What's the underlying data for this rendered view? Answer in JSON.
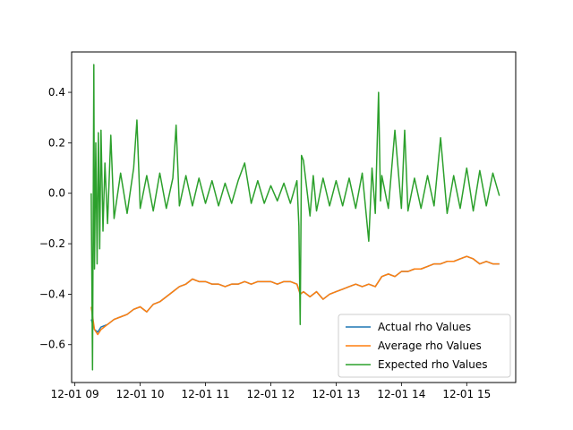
{
  "chart_data": {
    "type": "line",
    "title": "",
    "xlabel": "",
    "ylabel": "",
    "x_axis": {
      "unit": "hour",
      "ticks": [
        {
          "value": 9,
          "label": "12-01 09"
        },
        {
          "value": 10,
          "label": "12-01 10"
        },
        {
          "value": 11,
          "label": "12-01 11"
        },
        {
          "value": 12,
          "label": "12-01 12"
        },
        {
          "value": 13,
          "label": "12-01 13"
        },
        {
          "value": 14,
          "label": "12-01 14"
        },
        {
          "value": 15,
          "label": "12-01 15"
        }
      ]
    },
    "xlim": [
      8.95,
      15.75
    ],
    "ylim": [
      -0.75,
      0.56
    ],
    "y_ticks": [
      {
        "value": -0.6,
        "label": "−0.6"
      },
      {
        "value": -0.4,
        "label": "−0.4"
      },
      {
        "value": -0.2,
        "label": "−0.2"
      },
      {
        "value": 0.0,
        "label": "0.0"
      },
      {
        "value": 0.2,
        "label": "0.2"
      },
      {
        "value": 0.4,
        "label": "0.4"
      }
    ],
    "legend_position": "lower-right",
    "grid": false,
    "series": [
      {
        "name": "Actual rho Values",
        "color": "#1f77b4",
        "x": [
          9.25,
          9.3,
          9.35,
          9.4,
          9.5,
          9.6,
          9.7,
          9.8,
          9.9,
          10.0,
          10.1,
          10.2,
          10.3,
          10.4,
          10.5,
          10.6,
          10.7,
          10.8,
          10.9,
          11.0,
          11.1,
          11.2,
          11.3,
          11.4,
          11.5,
          11.6,
          11.7,
          11.8,
          11.9,
          12.0,
          12.1,
          12.2,
          12.3,
          12.4,
          12.45,
          12.5,
          12.6,
          12.7,
          12.8,
          12.9,
          13.0,
          13.1,
          13.2,
          13.3,
          13.4,
          13.5,
          13.6,
          13.7,
          13.8,
          13.9,
          14.0,
          14.1,
          14.2,
          14.3,
          14.4,
          14.5,
          14.6,
          14.7,
          14.8,
          14.9,
          15.0,
          15.1,
          15.2,
          15.3,
          15.4,
          15.5
        ],
        "y": [
          -0.5,
          -0.54,
          -0.55,
          -0.53,
          -0.52,
          -0.5,
          -0.49,
          -0.48,
          -0.46,
          -0.45,
          -0.47,
          -0.44,
          -0.43,
          -0.41,
          -0.39,
          -0.37,
          -0.36,
          -0.34,
          -0.35,
          -0.35,
          -0.36,
          -0.36,
          -0.37,
          -0.36,
          -0.36,
          -0.35,
          -0.36,
          -0.35,
          -0.35,
          -0.35,
          -0.36,
          -0.35,
          -0.35,
          -0.36,
          -0.4,
          -0.39,
          -0.41,
          -0.39,
          -0.42,
          -0.4,
          -0.39,
          -0.38,
          -0.37,
          -0.36,
          -0.37,
          -0.36,
          -0.37,
          -0.33,
          -0.32,
          -0.33,
          -0.31,
          -0.31,
          -0.3,
          -0.3,
          -0.29,
          -0.28,
          -0.28,
          -0.27,
          -0.27,
          -0.26,
          -0.25,
          -0.26,
          -0.28,
          -0.27,
          -0.28,
          -0.28
        ]
      },
      {
        "name": "Average rho Values",
        "color": "#ff7f0e",
        "x": [
          9.25,
          9.3,
          9.35,
          9.4,
          9.5,
          9.6,
          9.7,
          9.8,
          9.9,
          10.0,
          10.1,
          10.2,
          10.3,
          10.4,
          10.5,
          10.6,
          10.7,
          10.8,
          10.9,
          11.0,
          11.1,
          11.2,
          11.3,
          11.4,
          11.5,
          11.6,
          11.7,
          11.8,
          11.9,
          12.0,
          12.1,
          12.2,
          12.3,
          12.4,
          12.45,
          12.5,
          12.6,
          12.7,
          12.8,
          12.9,
          13.0,
          13.1,
          13.2,
          13.3,
          13.4,
          13.5,
          13.6,
          13.7,
          13.8,
          13.9,
          14.0,
          14.1,
          14.2,
          14.3,
          14.4,
          14.5,
          14.6,
          14.7,
          14.8,
          14.9,
          15.0,
          15.1,
          15.2,
          15.3,
          15.4,
          15.5
        ],
        "y": [
          -0.45,
          -0.54,
          -0.56,
          -0.54,
          -0.52,
          -0.5,
          -0.49,
          -0.48,
          -0.46,
          -0.45,
          -0.47,
          -0.44,
          -0.43,
          -0.41,
          -0.39,
          -0.37,
          -0.36,
          -0.34,
          -0.35,
          -0.35,
          -0.36,
          -0.36,
          -0.37,
          -0.36,
          -0.36,
          -0.35,
          -0.36,
          -0.35,
          -0.35,
          -0.35,
          -0.36,
          -0.35,
          -0.35,
          -0.36,
          -0.4,
          -0.39,
          -0.41,
          -0.39,
          -0.42,
          -0.4,
          -0.39,
          -0.38,
          -0.37,
          -0.36,
          -0.37,
          -0.36,
          -0.37,
          -0.33,
          -0.32,
          -0.33,
          -0.31,
          -0.31,
          -0.3,
          -0.3,
          -0.29,
          -0.28,
          -0.28,
          -0.27,
          -0.27,
          -0.26,
          -0.25,
          -0.26,
          -0.28,
          -0.27,
          -0.28,
          -0.28
        ]
      },
      {
        "name": "Expected rho Values",
        "color": "#2ca02c",
        "x": [
          9.25,
          9.27,
          9.29,
          9.3,
          9.32,
          9.34,
          9.36,
          9.38,
          9.4,
          9.43,
          9.46,
          9.5,
          9.55,
          9.6,
          9.7,
          9.8,
          9.9,
          9.95,
          10.0,
          10.1,
          10.2,
          10.3,
          10.4,
          10.5,
          10.55,
          10.6,
          10.7,
          10.8,
          10.9,
          11.0,
          11.1,
          11.2,
          11.3,
          11.4,
          11.5,
          11.6,
          11.7,
          11.8,
          11.9,
          12.0,
          12.1,
          12.2,
          12.3,
          12.4,
          12.43,
          12.45,
          12.47,
          12.5,
          12.6,
          12.65,
          12.7,
          12.8,
          12.9,
          13.0,
          13.1,
          13.2,
          13.3,
          13.4,
          13.5,
          13.55,
          13.6,
          13.65,
          13.68,
          13.7,
          13.8,
          13.9,
          14.0,
          14.05,
          14.1,
          14.2,
          14.3,
          14.4,
          14.5,
          14.6,
          14.7,
          14.8,
          14.9,
          15.0,
          15.1,
          15.2,
          15.3,
          15.4,
          15.5
        ],
        "y": [
          0.0,
          -0.7,
          0.51,
          -0.3,
          0.2,
          -0.28,
          0.24,
          -0.22,
          0.25,
          -0.15,
          0.12,
          -0.12,
          0.23,
          -0.1,
          0.08,
          -0.08,
          0.1,
          0.29,
          -0.06,
          0.07,
          -0.07,
          0.08,
          -0.06,
          0.06,
          0.27,
          -0.05,
          0.07,
          -0.05,
          0.06,
          -0.04,
          0.05,
          -0.05,
          0.04,
          -0.04,
          0.05,
          0.12,
          -0.04,
          0.05,
          -0.04,
          0.03,
          -0.03,
          0.04,
          -0.04,
          0.05,
          -0.13,
          -0.52,
          0.15,
          0.13,
          -0.09,
          0.07,
          -0.07,
          0.06,
          -0.05,
          0.05,
          -0.05,
          0.06,
          -0.06,
          0.08,
          -0.19,
          0.1,
          -0.08,
          0.4,
          -0.03,
          0.07,
          -0.06,
          0.25,
          -0.06,
          0.25,
          -0.07,
          0.06,
          -0.06,
          0.07,
          -0.05,
          0.22,
          -0.08,
          0.07,
          -0.06,
          0.1,
          -0.07,
          0.09,
          -0.05,
          0.08,
          -0.01
        ]
      }
    ]
  }
}
